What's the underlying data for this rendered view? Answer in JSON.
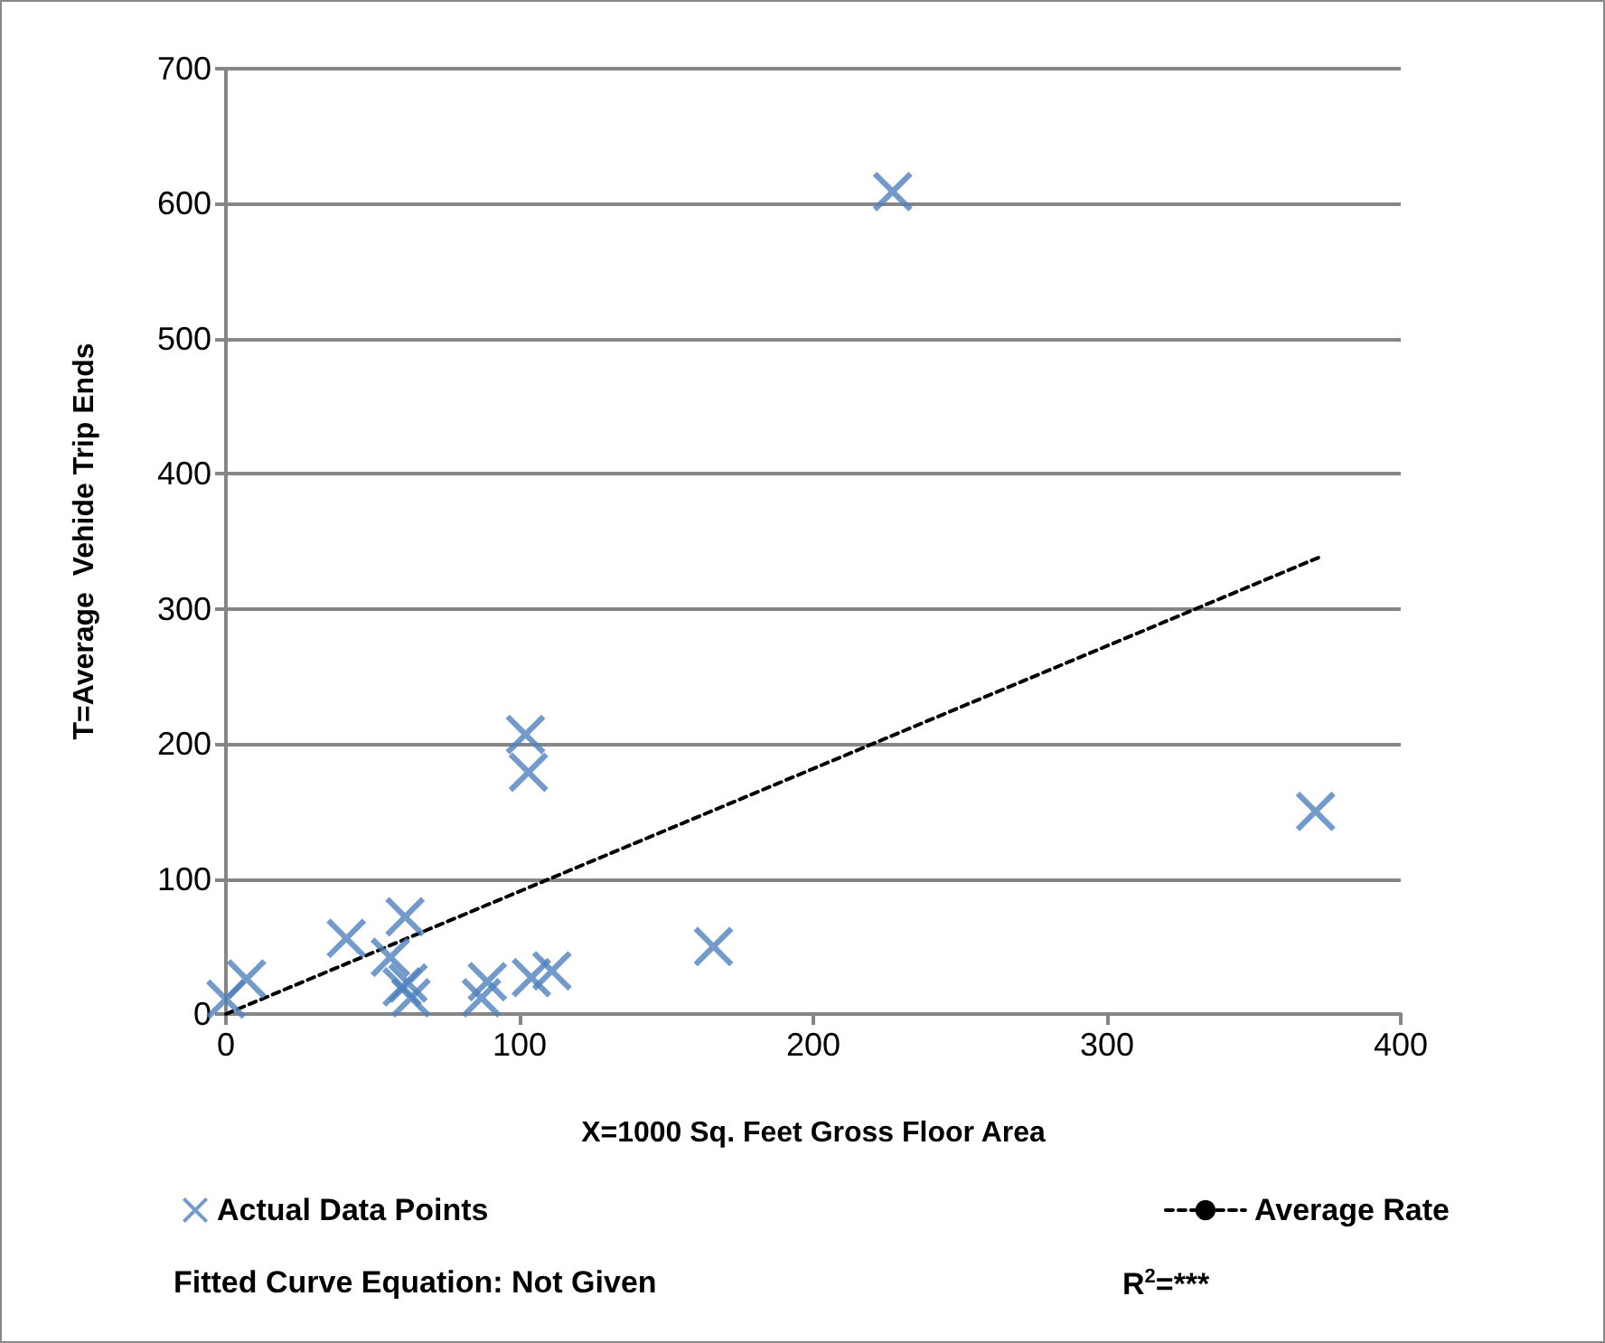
{
  "chart_data": {
    "type": "scatter",
    "xlabel": "X=1000 Sq. Feet Gross Floor Area",
    "ylabel": "T=Average  Vehide Trip Ends",
    "xlim": [
      0,
      400
    ],
    "xticks": [
      0,
      100,
      200,
      300,
      400
    ],
    "ylim": [
      0,
      700
    ],
    "yticks": [
      0,
      100,
      200,
      300,
      400,
      500,
      600,
      700
    ],
    "grid": "y",
    "legend": "bottom",
    "series": [
      {
        "name": "Actual Data Points",
        "color": "#4f81bd",
        "marker": "cross",
        "x": [
          0,
          7,
          41,
          61,
          56,
          62,
          63,
          60,
          89,
          87,
          104,
          111,
          102,
          103,
          166,
          227,
          371
        ],
        "values": [
          11,
          26,
          56,
          72,
          42,
          23,
          12,
          20,
          24,
          12,
          27,
          32,
          207,
          179,
          50,
          609,
          150
        ]
      },
      {
        "name": "Average Rate",
        "type": "line",
        "color": "#000000",
        "marker": "none",
        "line_style": "dashed",
        "x": [
          0,
          372
        ],
        "values": [
          0,
          338
        ]
      }
    ],
    "annotations": [
      "Fitted Curve Equation: Not Given",
      "R$^{2}$=***"
    ]
  }
}
